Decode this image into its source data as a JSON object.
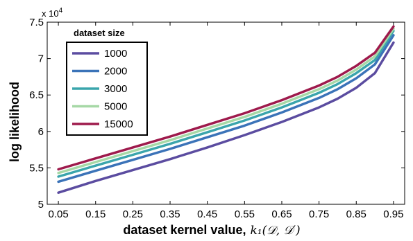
{
  "chart_data": {
    "type": "line",
    "xlabel": "dataset kernel value,",
    "xlabel_math": "k₁(𝒟, 𝒟′)",
    "ylabel": "log likelihood",
    "y_multiplier": "x 10",
    "y_multiplier_exp": "4",
    "legend_title": "dataset size",
    "legend_position": "top-left",
    "grid": false,
    "xlim": [
      0.02,
      0.98
    ],
    "ylim": [
      5,
      7.5
    ],
    "x_ticks": [
      0.05,
      0.15,
      0.25,
      0.35,
      0.45,
      0.55,
      0.65,
      0.75,
      0.85,
      0.95
    ],
    "x_tick_labels": [
      "0.05",
      "0.15",
      "0.25",
      "0.35",
      "0.45",
      "0.55",
      "0.65",
      "0.75",
      "0.85",
      "0.95"
    ],
    "y_ticks": [
      5,
      5.5,
      6,
      6.5,
      7,
      7.5
    ],
    "y_tick_labels": [
      "5",
      "5.5",
      "6",
      "6.5",
      "7",
      "7.5"
    ],
    "x": [
      0.05,
      0.15,
      0.25,
      0.35,
      0.45,
      0.55,
      0.65,
      0.75,
      0.8,
      0.85,
      0.9,
      0.95
    ],
    "series": [
      {
        "name": "1000",
        "color": "#5b4ca0",
        "values": [
          5.16,
          5.32,
          5.47,
          5.62,
          5.78,
          5.95,
          6.13,
          6.33,
          6.45,
          6.6,
          6.8,
          7.22
        ]
      },
      {
        "name": "2000",
        "color": "#3b73b8",
        "values": [
          5.31,
          5.46,
          5.61,
          5.76,
          5.92,
          6.08,
          6.26,
          6.46,
          6.58,
          6.73,
          6.92,
          7.32
        ]
      },
      {
        "name": "3000",
        "color": "#3aa5ac",
        "values": [
          5.38,
          5.53,
          5.68,
          5.83,
          5.99,
          6.15,
          6.33,
          6.53,
          6.65,
          6.8,
          6.98,
          7.38
        ]
      },
      {
        "name": "5000",
        "color": "#a6d8a6",
        "values": [
          5.43,
          5.58,
          5.73,
          5.88,
          6.04,
          6.2,
          6.38,
          6.58,
          6.7,
          6.85,
          7.03,
          7.41
        ]
      },
      {
        "name": "15000",
        "color": "#9e1a4c",
        "values": [
          5.48,
          5.63,
          5.78,
          5.93,
          6.09,
          6.25,
          6.43,
          6.63,
          6.75,
          6.9,
          7.08,
          7.44
        ]
      }
    ]
  }
}
